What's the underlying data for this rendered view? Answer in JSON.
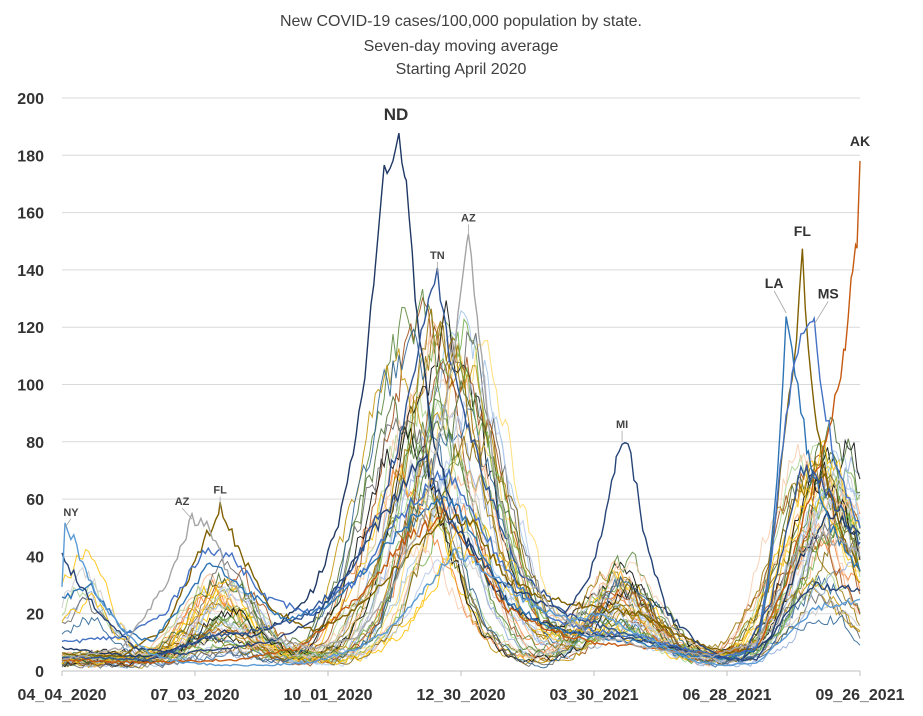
{
  "chart_data": {
    "type": "line",
    "title": [
      "New COVID-19 cases/100,000 population by state.",
      "Seven-day moving average",
      "Starting April 2020"
    ],
    "xlabel": "",
    "ylabel": "",
    "ylim": [
      0,
      200
    ],
    "y_ticks": [
      0,
      20,
      40,
      60,
      80,
      100,
      120,
      140,
      160,
      180,
      200
    ],
    "x_ticks": [
      "04_04_2020",
      "07_03_2020",
      "10_01_2020",
      "12_30_2020",
      "03_30_2021",
      "06_28_2021",
      "09_26_2021"
    ],
    "x_range_days": [
      0,
      540
    ],
    "grid": "horizontal",
    "legend": "none",
    "annotations": [
      {
        "label": "NY",
        "day": 2,
        "value": 50
      },
      {
        "label": "AZ",
        "day": 88,
        "value": 53
      },
      {
        "label": "FL",
        "day": 107,
        "value": 57
      },
      {
        "label": "ND",
        "day": 226,
        "value": 186
      },
      {
        "label": "TN",
        "day": 254,
        "value": 139
      },
      {
        "label": "AZ",
        "day": 275,
        "value": 152
      },
      {
        "label": "MI",
        "day": 379,
        "value": 80
      },
      {
        "label": "LA",
        "day": 490,
        "value": 125
      },
      {
        "label": "FL",
        "day": 501,
        "value": 147
      },
      {
        "label": "MS",
        "day": 509,
        "value": 121
      },
      {
        "label": "AK",
        "day": 540,
        "value": 178
      }
    ],
    "highlighted_series": [
      {
        "name": "ND",
        "color": "#1f3864",
        "points": [
          [
            0,
            8
          ],
          [
            30,
            6
          ],
          [
            60,
            5
          ],
          [
            90,
            10
          ],
          [
            110,
            14
          ],
          [
            130,
            12
          ],
          [
            150,
            18
          ],
          [
            170,
            28
          ],
          [
            185,
            48
          ],
          [
            195,
            70
          ],
          [
            205,
            105
          ],
          [
            212,
            140
          ],
          [
            218,
            175
          ],
          [
            224,
            178
          ],
          [
            228,
            186
          ],
          [
            233,
            170
          ],
          [
            240,
            125
          ],
          [
            250,
            85
          ],
          [
            262,
            60
          ],
          [
            275,
            45
          ],
          [
            290,
            30
          ],
          [
            310,
            20
          ],
          [
            340,
            14
          ],
          [
            370,
            12
          ],
          [
            400,
            10
          ],
          [
            430,
            6
          ],
          [
            460,
            4
          ],
          [
            480,
            12
          ],
          [
            500,
            40
          ],
          [
            520,
            55
          ],
          [
            540,
            48
          ]
        ]
      },
      {
        "name": "AK",
        "color": "#c55a11",
        "points": [
          [
            0,
            4
          ],
          [
            60,
            3
          ],
          [
            120,
            4
          ],
          [
            160,
            8
          ],
          [
            200,
            25
          ],
          [
            230,
            45
          ],
          [
            260,
            55
          ],
          [
            280,
            38
          ],
          [
            300,
            22
          ],
          [
            330,
            14
          ],
          [
            360,
            10
          ],
          [
            400,
            8
          ],
          [
            440,
            6
          ],
          [
            470,
            8
          ],
          [
            490,
            30
          ],
          [
            505,
            60
          ],
          [
            515,
            75
          ],
          [
            523,
            95
          ],
          [
            530,
            112
          ],
          [
            535,
            140
          ],
          [
            538,
            150
          ],
          [
            540,
            178
          ]
        ]
      },
      {
        "name": "FL",
        "color": "#806000",
        "points": [
          [
            0,
            6
          ],
          [
            40,
            5
          ],
          [
            70,
            15
          ],
          [
            90,
            38
          ],
          [
            107,
            57
          ],
          [
            120,
            42
          ],
          [
            140,
            22
          ],
          [
            170,
            14
          ],
          [
            200,
            22
          ],
          [
            230,
            38
          ],
          [
            260,
            55
          ],
          [
            280,
            50
          ],
          [
            300,
            32
          ],
          [
            330,
            25
          ],
          [
            360,
            22
          ],
          [
            390,
            20
          ],
          [
            420,
            12
          ],
          [
            450,
            6
          ],
          [
            470,
            8
          ],
          [
            480,
            40
          ],
          [
            490,
            90
          ],
          [
            497,
            115
          ],
          [
            501,
            147
          ],
          [
            505,
            110
          ],
          [
            515,
            70
          ],
          [
            530,
            45
          ],
          [
            540,
            35
          ]
        ]
      },
      {
        "name": "LA",
        "color": "#2e75b6",
        "points": [
          [
            0,
            25
          ],
          [
            20,
            30
          ],
          [
            40,
            15
          ],
          [
            60,
            10
          ],
          [
            80,
            22
          ],
          [
            100,
            38
          ],
          [
            120,
            30
          ],
          [
            150,
            18
          ],
          [
            180,
            22
          ],
          [
            210,
            38
          ],
          [
            240,
            55
          ],
          [
            265,
            60
          ],
          [
            280,
            45
          ],
          [
            300,
            25
          ],
          [
            330,
            15
          ],
          [
            360,
            12
          ],
          [
            390,
            10
          ],
          [
            420,
            6
          ],
          [
            450,
            4
          ],
          [
            470,
            8
          ],
          [
            478,
            30
          ],
          [
            484,
            70
          ],
          [
            488,
            100
          ],
          [
            490,
            125
          ],
          [
            496,
            105
          ],
          [
            505,
            75
          ],
          [
            520,
            50
          ],
          [
            540,
            35
          ]
        ]
      },
      {
        "name": "MS",
        "color": "#4472c4",
        "points": [
          [
            0,
            10
          ],
          [
            40,
            12
          ],
          [
            70,
            20
          ],
          [
            95,
            42
          ],
          [
            115,
            40
          ],
          [
            140,
            25
          ],
          [
            170,
            20
          ],
          [
            200,
            32
          ],
          [
            230,
            55
          ],
          [
            260,
            70
          ],
          [
            280,
            55
          ],
          [
            300,
            35
          ],
          [
            330,
            18
          ],
          [
            360,
            14
          ],
          [
            390,
            12
          ],
          [
            420,
            8
          ],
          [
            450,
            5
          ],
          [
            470,
            8
          ],
          [
            480,
            40
          ],
          [
            490,
            90
          ],
          [
            500,
            118
          ],
          [
            509,
            121
          ],
          [
            515,
            95
          ],
          [
            525,
            70
          ],
          [
            540,
            50
          ]
        ]
      },
      {
        "name": "MI",
        "color": "#264478",
        "points": [
          [
            0,
            40
          ],
          [
            25,
            20
          ],
          [
            50,
            8
          ],
          [
            80,
            6
          ],
          [
            110,
            8
          ],
          [
            140,
            10
          ],
          [
            170,
            18
          ],
          [
            200,
            40
          ],
          [
            225,
            60
          ],
          [
            245,
            75
          ],
          [
            260,
            55
          ],
          [
            280,
            40
          ],
          [
            300,
            30
          ],
          [
            320,
            25
          ],
          [
            340,
            20
          ],
          [
            355,
            30
          ],
          [
            368,
            55
          ],
          [
            375,
            75
          ],
          [
            379,
            80
          ],
          [
            385,
            75
          ],
          [
            395,
            45
          ],
          [
            410,
            20
          ],
          [
            430,
            10
          ],
          [
            450,
            4
          ],
          [
            470,
            4
          ],
          [
            490,
            20
          ],
          [
            510,
            30
          ],
          [
            540,
            28
          ]
        ]
      },
      {
        "name": "TN",
        "color": "#2f5597",
        "points": [
          [
            0,
            5
          ],
          [
            60,
            4
          ],
          [
            100,
            12
          ],
          [
            130,
            14
          ],
          [
            160,
            18
          ],
          [
            190,
            30
          ],
          [
            215,
            55
          ],
          [
            235,
            95
          ],
          [
            248,
            130
          ],
          [
            254,
            139
          ],
          [
            262,
            110
          ],
          [
            275,
            85
          ],
          [
            290,
            60
          ],
          [
            310,
            35
          ],
          [
            340,
            20
          ],
          [
            370,
            15
          ],
          [
            400,
            10
          ],
          [
            430,
            6
          ],
          [
            460,
            4
          ],
          [
            480,
            25
          ],
          [
            500,
            70
          ],
          [
            515,
            65
          ],
          [
            540,
            45
          ]
        ]
      },
      {
        "name": "AZ",
        "color": "#a5a5a5",
        "points": [
          [
            0,
            4
          ],
          [
            40,
            8
          ],
          [
            70,
            30
          ],
          [
            88,
            53
          ],
          [
            100,
            50
          ],
          [
            115,
            30
          ],
          [
            140,
            12
          ],
          [
            170,
            8
          ],
          [
            200,
            12
          ],
          [
            225,
            30
          ],
          [
            245,
            55
          ],
          [
            260,
            95
          ],
          [
            270,
            130
          ],
          [
            275,
            152
          ],
          [
            282,
            120
          ],
          [
            292,
            70
          ],
          [
            305,
            40
          ],
          [
            330,
            22
          ],
          [
            360,
            12
          ],
          [
            400,
            8
          ],
          [
            440,
            5
          ],
          [
            470,
            10
          ],
          [
            495,
            40
          ],
          [
            515,
            48
          ],
          [
            540,
            40
          ]
        ]
      },
      {
        "name": "NY",
        "color": "#5b9bd5",
        "points": [
          [
            0,
            30
          ],
          [
            2,
            50
          ],
          [
            8,
            46
          ],
          [
            18,
            32
          ],
          [
            30,
            22
          ],
          [
            45,
            12
          ],
          [
            60,
            6
          ],
          [
            80,
            3
          ],
          [
            110,
            2
          ],
          [
            140,
            2
          ],
          [
            170,
            3
          ],
          [
            200,
            8
          ],
          [
            220,
            14
          ],
          [
            245,
            28
          ],
          [
            265,
            42
          ],
          [
            280,
            38
          ],
          [
            300,
            30
          ],
          [
            320,
            22
          ],
          [
            345,
            18
          ],
          [
            365,
            20
          ],
          [
            385,
            14
          ],
          [
            410,
            8
          ],
          [
            430,
            3
          ],
          [
            450,
            2
          ],
          [
            470,
            3
          ],
          [
            490,
            12
          ],
          [
            510,
            22
          ],
          [
            540,
            25
          ]
        ]
      }
    ],
    "background_series_colors": [
      "#70ad47",
      "#ffc000",
      "#ed7d31",
      "#9dc3e6",
      "#a9d18e",
      "#f4b183",
      "#ffd966",
      "#548235",
      "#bf9000",
      "#8faadc",
      "#c9c9c9",
      "#000000",
      "#7f6000",
      "#9e480e",
      "#636363",
      "#997300",
      "#43682b",
      "#255e91",
      "#f8cbad",
      "#b4c7e7"
    ]
  }
}
